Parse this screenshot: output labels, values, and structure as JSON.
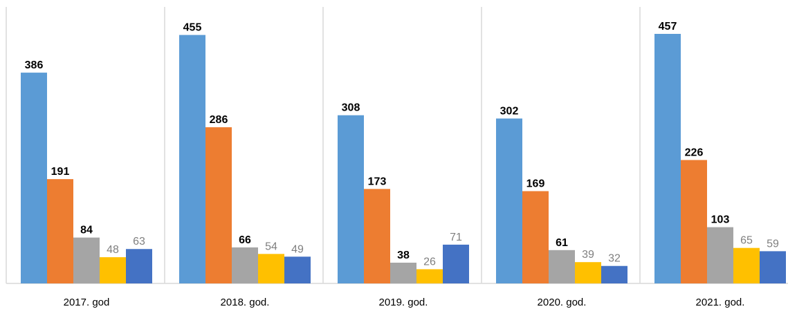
{
  "chart_data": {
    "type": "bar",
    "categories": [
      "2017. god",
      "2018. god.",
      "2019. god.",
      "2020. god.",
      "2021. god."
    ],
    "series": [
      {
        "color": "#5b9bd5",
        "values": [
          386,
          455,
          308,
          302,
          457
        ]
      },
      {
        "color": "#ed7d31",
        "values": [
          191,
          286,
          173,
          169,
          226
        ]
      },
      {
        "color": "#a5a5a5",
        "values": [
          84,
          66,
          38,
          61,
          103
        ]
      },
      {
        "color": "#ffc000",
        "values": [
          48,
          54,
          26,
          39,
          65
        ]
      },
      {
        "color": "#4472c4",
        "values": [
          63,
          49,
          71,
          32,
          59
        ]
      }
    ]
  }
}
